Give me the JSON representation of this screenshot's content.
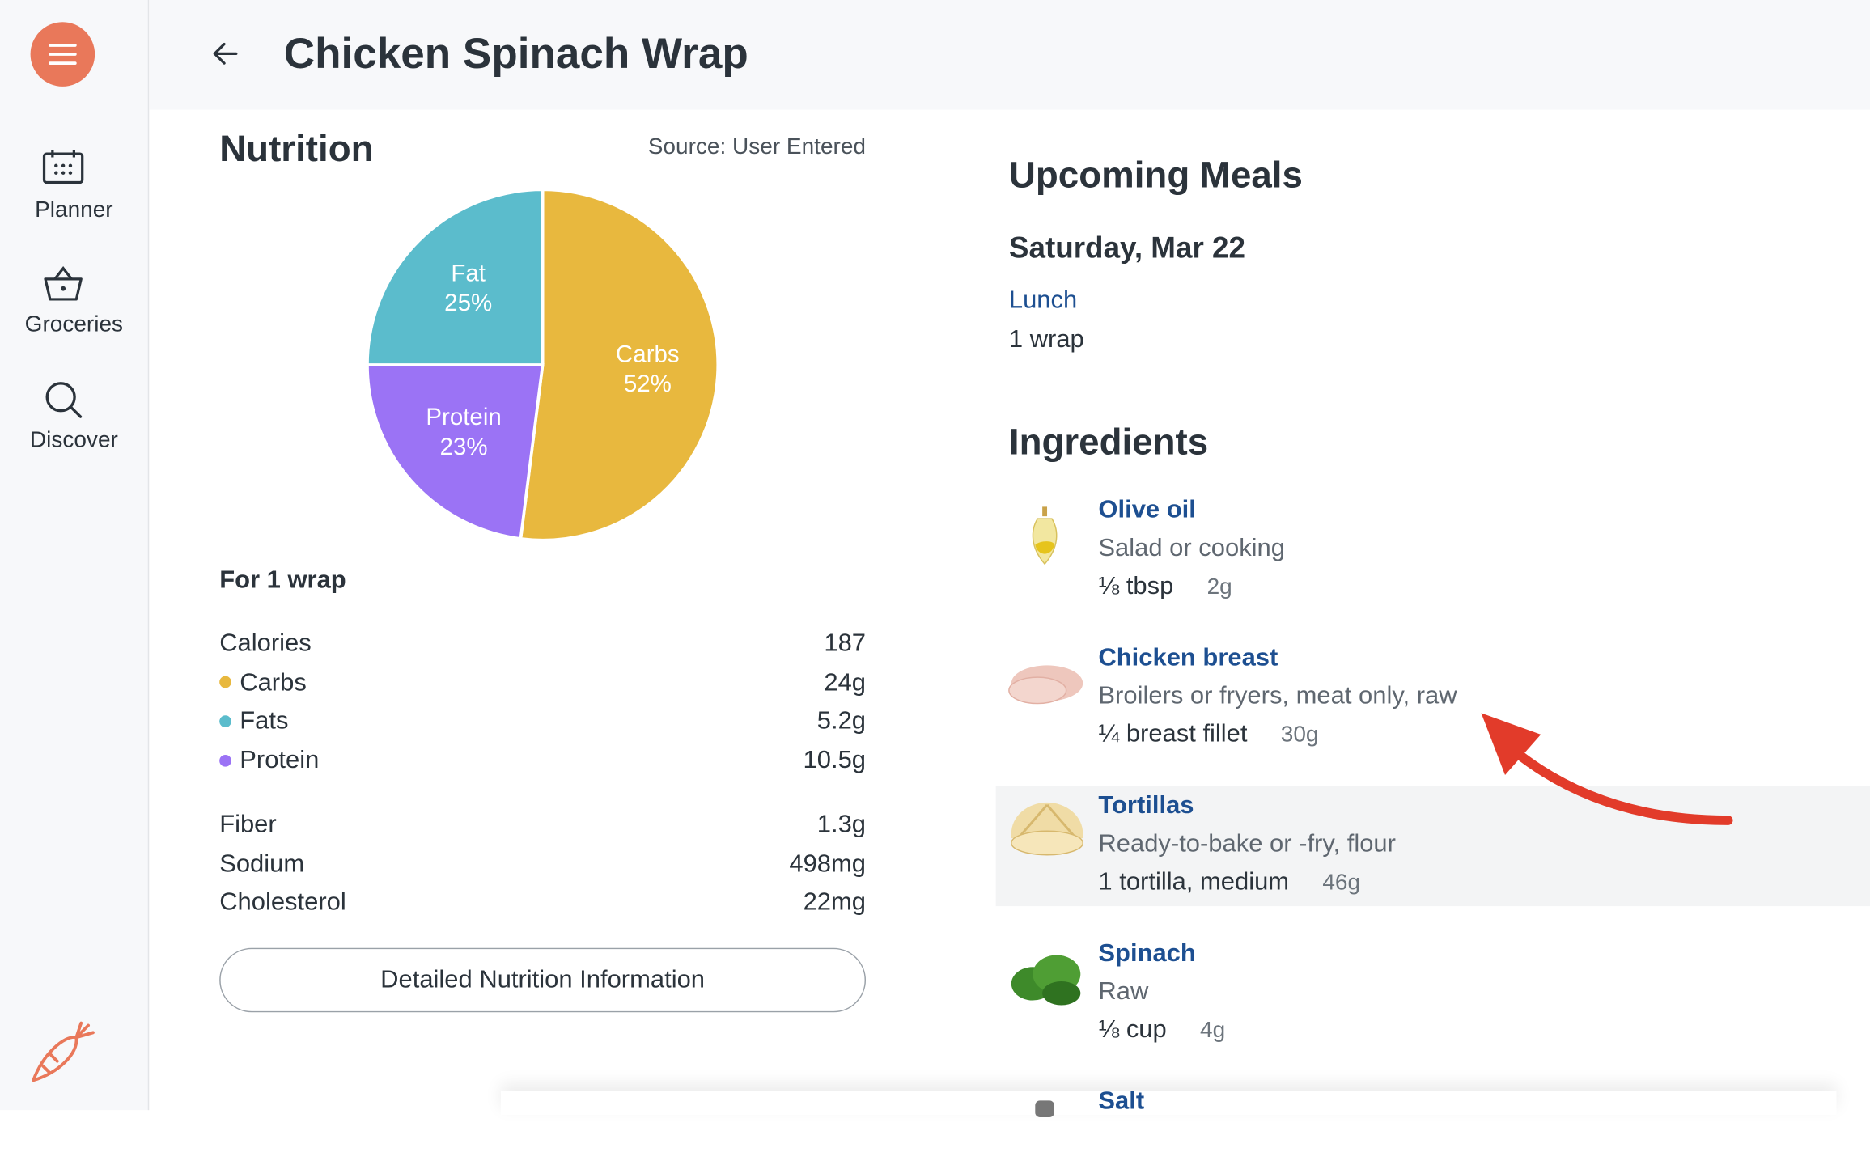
{
  "sidebar": {
    "nav": [
      "Planner",
      "Groceries",
      "Discover"
    ]
  },
  "header": {
    "title": "Chicken Spinach Wrap"
  },
  "nutrition": {
    "title": "Nutrition",
    "source": "Source: User Entered",
    "serving": "For 1 wrap",
    "rows": [
      [
        {
          "name": "Calories",
          "value": "187"
        },
        {
          "name": "Carbs",
          "value": "24g",
          "color": "#e8b83e"
        },
        {
          "name": "Fats",
          "value": "5.2g",
          "color": "#5bbccc"
        },
        {
          "name": "Protein",
          "value": "10.5g",
          "color": "#9b73f5"
        }
      ],
      [
        {
          "name": "Fiber",
          "value": "1.3g"
        },
        {
          "name": "Sodium",
          "value": "498mg"
        },
        {
          "name": "Cholesterol",
          "value": "22mg"
        }
      ]
    ],
    "button": "Detailed Nutrition Information"
  },
  "chart_data": {
    "type": "pie",
    "categories": [
      "Carbs",
      "Protein",
      "Fat"
    ],
    "values": [
      52,
      23,
      25
    ],
    "value_labels": [
      "52%",
      "23%",
      "25%"
    ],
    "colors": [
      "#e8b83e",
      "#9b73f5",
      "#5bbccc"
    ]
  },
  "upcoming": {
    "title": "Upcoming Meals",
    "date": "Saturday, Mar 22",
    "meal": "Lunch",
    "amount": "1 wrap"
  },
  "ingredients": {
    "title": "Ingredients",
    "items": [
      {
        "name": "Olive oil",
        "desc": "Salad or cooking",
        "amount": "⅛ tbsp",
        "grams": "2g"
      },
      {
        "name": "Chicken breast",
        "desc": "Broilers or fryers, meat only, raw",
        "amount": "¼ breast fillet",
        "grams": "30g"
      },
      {
        "name": "Tortillas",
        "desc": "Ready-to-bake or -fry, flour",
        "amount": "1 tortilla, medium",
        "grams": "46g"
      },
      {
        "name": "Spinach",
        "desc": "Raw",
        "amount": "⅛ cup",
        "grams": "4g"
      },
      {
        "name": "Salt"
      }
    ]
  }
}
